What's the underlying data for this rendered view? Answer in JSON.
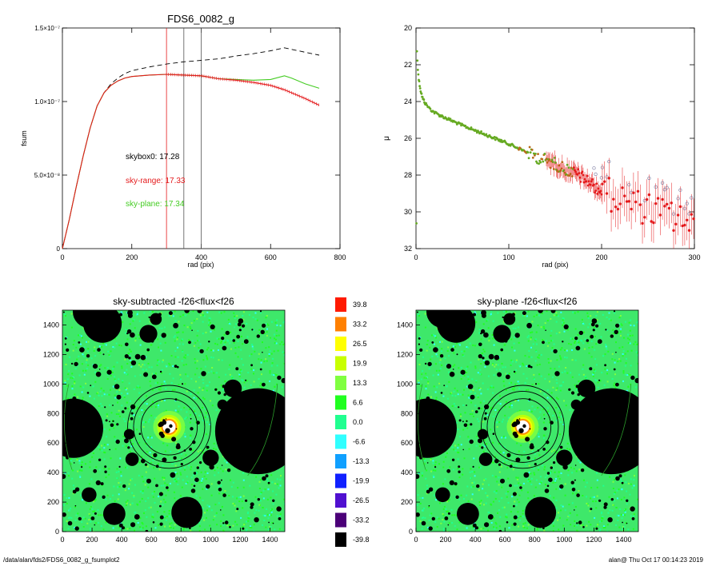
{
  "chart_data": [
    {
      "type": "line",
      "title": "FDS6_0082_g",
      "xlabel": "rad (pix)",
      "ylabel": "fsum",
      "xlim": [
        0,
        800
      ],
      "ylim": [
        0,
        1.5e-07
      ],
      "xticks": [
        "0",
        "200",
        "400",
        "600",
        "800"
      ],
      "yticks": [
        {
          "value": 0,
          "label": "0"
        },
        {
          "value": 5e-08,
          "label": "5.0×10⁻⁸"
        },
        {
          "value": 1e-07,
          "label": "1.0×10⁻⁷"
        },
        {
          "value": 1.5e-07,
          "label": "1.5×10⁻⁷"
        }
      ],
      "vlines": [
        {
          "x": 300,
          "color": "#e41a1c"
        },
        {
          "x": 350,
          "color": "#555555"
        },
        {
          "x": 400,
          "color": "#555555"
        }
      ],
      "annotations": [
        {
          "text": "skybox0: 17.28",
          "color": "#000000"
        },
        {
          "text": "sky-range: 17.33",
          "color": "#e41a1c"
        },
        {
          "text": "sky-plane: 17.34",
          "color": "#44cc22"
        }
      ],
      "series": [
        {
          "style": "dashed",
          "color": "#000000",
          "x": [
            0,
            20,
            40,
            60,
            80,
            100,
            120,
            140,
            160,
            180,
            200,
            250,
            300,
            350,
            400,
            450,
            500,
            550,
            600,
            640,
            660,
            700,
            740
          ],
          "y": [
            0,
            2e-08,
            4.2e-08,
            6.3e-08,
            8.2e-08,
            9.7e-08,
            1.06e-07,
            1.12e-07,
            1.16e-07,
            1.19e-07,
            1.21e-07,
            1.235e-07,
            1.255e-07,
            1.27e-07,
            1.28e-07,
            1.29e-07,
            1.31e-07,
            1.325e-07,
            1.345e-07,
            1.365e-07,
            1.355e-07,
            1.335e-07,
            1.315e-07
          ]
        },
        {
          "style": "solid",
          "color": "#44cc22",
          "x": [
            0,
            20,
            40,
            60,
            80,
            100,
            120,
            140,
            160,
            180,
            200,
            250,
            300,
            350,
            400,
            450,
            500,
            550,
            600,
            640,
            660,
            700,
            740
          ],
          "y": [
            0,
            2e-08,
            4.2e-08,
            6.3e-08,
            8.2e-08,
            9.7e-08,
            1.06e-07,
            1.11e-07,
            1.14e-07,
            1.16e-07,
            1.17e-07,
            1.18e-07,
            1.185e-07,
            1.18e-07,
            1.175e-07,
            1.155e-07,
            1.15e-07,
            1.145e-07,
            1.15e-07,
            1.175e-07,
            1.16e-07,
            1.12e-07,
            1.09e-07
          ]
        },
        {
          "style": "solid",
          "color": "#e41a1c",
          "x": [
            0,
            20,
            40,
            60,
            80,
            100,
            120,
            140,
            160,
            180,
            200,
            250,
            300,
            350,
            400,
            450,
            500,
            550,
            600,
            640,
            660,
            700,
            740
          ],
          "y": [
            0,
            2e-08,
            4.2e-08,
            6.3e-08,
            8.2e-08,
            9.7e-08,
            1.06e-07,
            1.11e-07,
            1.14e-07,
            1.16e-07,
            1.17e-07,
            1.18e-07,
            1.185e-07,
            1.18e-07,
            1.175e-07,
            1.155e-07,
            1.145e-07,
            1.13e-07,
            1.11e-07,
            1.08e-07,
            1.06e-07,
            1.02e-07,
            9.75e-08
          ]
        }
      ]
    },
    {
      "type": "scatter",
      "title": "",
      "xlabel": "rad (pix)",
      "ylabel": "μ",
      "xlim": [
        0,
        300
      ],
      "ylim": [
        32,
        20
      ],
      "xticks": [
        "0",
        "100",
        "200",
        "300"
      ],
      "yticks": [
        "20",
        "22",
        "24",
        "26",
        "28",
        "30",
        "32"
      ],
      "trend": {
        "x": [
          1,
          2,
          3,
          5,
          7,
          10,
          15,
          20,
          30,
          50,
          80,
          100,
          130,
          150,
          175,
          190,
          200,
          220,
          240,
          260,
          280,
          300
        ],
        "y": [
          21.3,
          22.2,
          22.8,
          23.4,
          23.8,
          24.1,
          24.4,
          24.6,
          24.85,
          25.3,
          25.9,
          26.3,
          27.0,
          27.4,
          28.0,
          28.5,
          28.9,
          29.3,
          29.7,
          30.0,
          30.3,
          30.6
        ]
      },
      "colors": {
        "early": "#66aa22",
        "late": "#e41a1c",
        "open": "#8888aa"
      }
    },
    {
      "type": "heatmap",
      "title": "sky-subtracted -f26<flux<f26",
      "xlim": [
        0,
        1500
      ],
      "ylim": [
        0,
        1500
      ],
      "xticks": [
        "0",
        "200",
        "400",
        "600",
        "800",
        "1000",
        "1200",
        "1400"
      ],
      "yticks": [
        "0",
        "200",
        "400",
        "600",
        "800",
        "1000",
        "1200",
        "1400"
      ],
      "center": [
        720,
        710
      ],
      "rings": [
        190,
        240,
        280
      ],
      "masks": [
        [
          75,
          700,
          200
        ],
        [
          1320,
          680,
          290
        ],
        [
          1150,
          970,
          60
        ],
        [
          1080,
          860,
          35
        ],
        [
          270,
          1410,
          130
        ],
        [
          180,
          1490,
          110
        ],
        [
          580,
          1340,
          60
        ],
        [
          630,
          1440,
          40
        ],
        [
          840,
          130,
          105
        ],
        [
          350,
          120,
          75
        ],
        [
          180,
          250,
          50
        ],
        [
          470,
          490,
          45
        ],
        [
          1000,
          500,
          55
        ],
        [
          450,
          660,
          35
        ]
      ]
    },
    {
      "type": "heatmap",
      "title": "sky-plane -f26<flux<f26",
      "xlim": [
        0,
        1500
      ],
      "ylim": [
        0,
        1500
      ],
      "xticks": [
        "0",
        "200",
        "400",
        "600",
        "800",
        "1000",
        "1200",
        "1400"
      ],
      "yticks": [
        "0",
        "200",
        "400",
        "600",
        "800",
        "1000",
        "1200",
        "1400"
      ]
    },
    {
      "type": "colorbar",
      "labels": [
        "39.8",
        "33.2",
        "26.5",
        "19.9",
        "13.3",
        "6.6",
        "0.0",
        "-6.6",
        "-13.3",
        "-19.9",
        "-26.5",
        "-33.2",
        "-39.8"
      ],
      "colors": [
        "#ff1a00",
        "#ff8000",
        "#ffff00",
        "#c8ff00",
        "#80ff40",
        "#20ff20",
        "#20ff90",
        "#30ffff",
        "#10a0ff",
        "#1020ff",
        "#5010d0",
        "#4b0078",
        "#000000"
      ]
    }
  ],
  "footer": {
    "left": "/data/alan/fds2/FDS6_0082_g_fsumplot2",
    "right": "alan@  Thu Oct 17 00:14:23 2019"
  }
}
